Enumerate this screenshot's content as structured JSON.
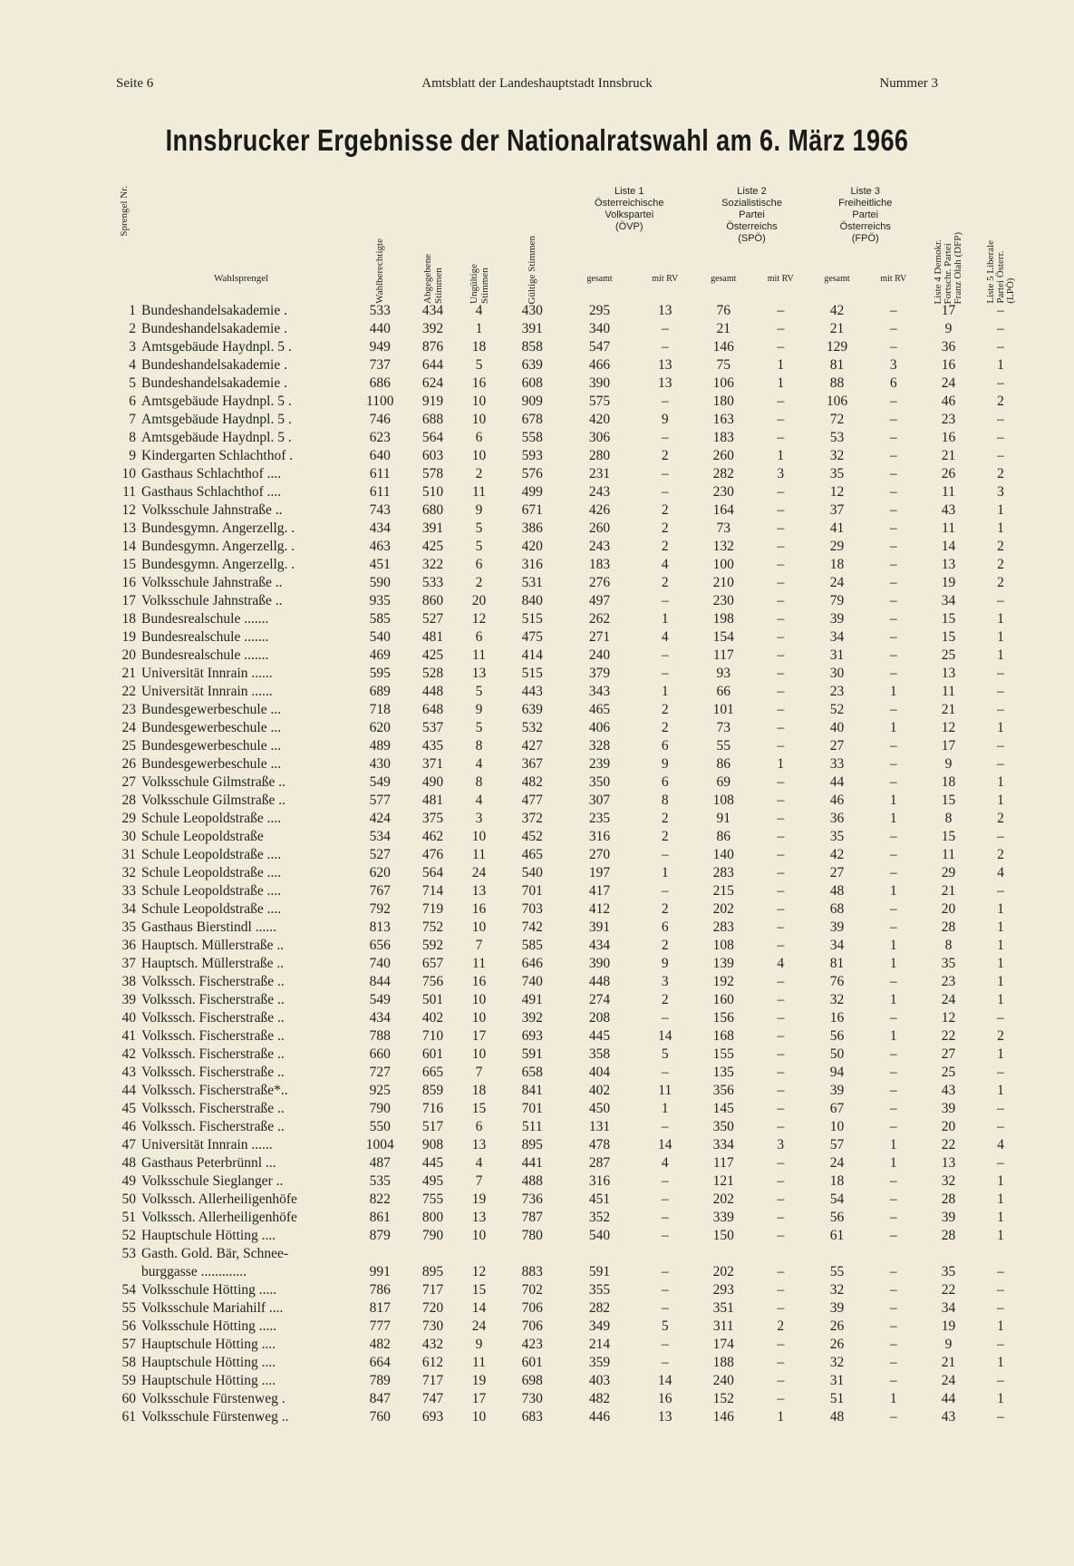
{
  "header": {
    "left": "Seite 6",
    "center": "Amtsblatt der Landeshauptstadt Innsbruck",
    "right": "Nummer 3"
  },
  "title": "Innsbrucker Ergebnisse der Nationalratswahl am 6. März 1966",
  "columns": {
    "nr": "Sprengel Nr.",
    "name": "Wahlsprengel",
    "wahlberechtigte": "Wahlberechtigte",
    "abgegeben": "Abgegebene\nStimmen",
    "ungueltig": "Ungültige\nStimmen",
    "gueltig": "Gültige Stimmen",
    "liste1": "Liste 1\nÖsterreichische\nVolkspartei\n(ÖVP)",
    "liste2": "Liste 2\nSozialistische\nPartei\nÖsterreichs\n(SPÖ)",
    "liste3": "Liste 3\nFreiheitliche\nPartei\nÖsterreichs\n(FPÖ)",
    "gesamt": "gesamt",
    "mit_rv": "mit RV",
    "liste4": "Liste 4  Demokr.\nFortschr. Partei\nFranz Olah (DFP)",
    "liste5": "Liste 5  Liberale\nPartei Österr.\n(LPÖ)"
  },
  "rows": [
    [
      "1",
      "Bundeshandelsakademie .",
      "533",
      "434",
      "4",
      "430",
      "295",
      "13",
      "76",
      "–",
      "42",
      "–",
      "17",
      "–"
    ],
    [
      "2",
      "Bundeshandelsakademie .",
      "440",
      "392",
      "1",
      "391",
      "340",
      "–",
      "21",
      "–",
      "21",
      "–",
      "9",
      "–"
    ],
    [
      "3",
      "Amtsgebäude Haydnpl. 5 .",
      "949",
      "876",
      "18",
      "858",
      "547",
      "–",
      "146",
      "–",
      "129",
      "–",
      "36",
      "–"
    ],
    [
      "4",
      "Bundeshandelsakademie .",
      "737",
      "644",
      "5",
      "639",
      "466",
      "13",
      "75",
      "1",
      "81",
      "3",
      "16",
      "1"
    ],
    [
      "5",
      "Bundeshandelsakademie .",
      "686",
      "624",
      "16",
      "608",
      "390",
      "13",
      "106",
      "1",
      "88",
      "6",
      "24",
      "–"
    ],
    [
      "6",
      "Amtsgebäude Haydnpl. 5 .",
      "1100",
      "919",
      "10",
      "909",
      "575",
      "–",
      "180",
      "–",
      "106",
      "–",
      "46",
      "2"
    ],
    [
      "7",
      "Amtsgebäude Haydnpl. 5 .",
      "746",
      "688",
      "10",
      "678",
      "420",
      "9",
      "163",
      "–",
      "72",
      "–",
      "23",
      "–"
    ],
    [
      "8",
      "Amtsgebäude Haydnpl. 5 .",
      "623",
      "564",
      "6",
      "558",
      "306",
      "–",
      "183",
      "–",
      "53",
      "–",
      "16",
      "–"
    ],
    [
      "9",
      "Kindergarten Schlachthof .",
      "640",
      "603",
      "10",
      "593",
      "280",
      "2",
      "260",
      "1",
      "32",
      "–",
      "21",
      "–"
    ],
    [
      "10",
      "Gasthaus Schlachthof ....",
      "611",
      "578",
      "2",
      "576",
      "231",
      "–",
      "282",
      "3",
      "35",
      "–",
      "26",
      "2"
    ],
    [
      "11",
      "Gasthaus Schlachthof ....",
      "611",
      "510",
      "11",
      "499",
      "243",
      "–",
      "230",
      "–",
      "12",
      "–",
      "11",
      "3"
    ],
    [
      "12",
      "Volksschule Jahnstraße ..",
      "743",
      "680",
      "9",
      "671",
      "426",
      "2",
      "164",
      "–",
      "37",
      "–",
      "43",
      "1"
    ],
    [
      "13",
      "Bundesgymn. Angerzellg. .",
      "434",
      "391",
      "5",
      "386",
      "260",
      "2",
      "73",
      "–",
      "41",
      "–",
      "11",
      "1"
    ],
    [
      "14",
      "Bundesgymn. Angerzellg. .",
      "463",
      "425",
      "5",
      "420",
      "243",
      "2",
      "132",
      "–",
      "29",
      "–",
      "14",
      "2"
    ],
    [
      "15",
      "Bundesgymn. Angerzellg. .",
      "451",
      "322",
      "6",
      "316",
      "183",
      "4",
      "100",
      "–",
      "18",
      "–",
      "13",
      "2"
    ],
    [
      "16",
      "Volksschule Jahnstraße ..",
      "590",
      "533",
      "2",
      "531",
      "276",
      "2",
      "210",
      "–",
      "24",
      "–",
      "19",
      "2"
    ],
    [
      "17",
      "Volksschule Jahnstraße ..",
      "935",
      "860",
      "20",
      "840",
      "497",
      "–",
      "230",
      "–",
      "79",
      "–",
      "34",
      "–"
    ],
    [
      "18",
      "Bundesrealschule .......",
      "585",
      "527",
      "12",
      "515",
      "262",
      "1",
      "198",
      "–",
      "39",
      "–",
      "15",
      "1"
    ],
    [
      "19",
      "Bundesrealschule .......",
      "540",
      "481",
      "6",
      "475",
      "271",
      "4",
      "154",
      "–",
      "34",
      "–",
      "15",
      "1"
    ],
    [
      "20",
      "Bundesrealschule .......",
      "469",
      "425",
      "11",
      "414",
      "240",
      "–",
      "117",
      "–",
      "31",
      "–",
      "25",
      "1"
    ],
    [
      "21",
      "Universität Innrain ......",
      "595",
      "528",
      "13",
      "515",
      "379",
      "–",
      "93",
      "–",
      "30",
      "–",
      "13",
      "–"
    ],
    [
      "22",
      "Universität Innrain ......",
      "689",
      "448",
      "5",
      "443",
      "343",
      "1",
      "66",
      "–",
      "23",
      "1",
      "11",
      "–"
    ],
    [
      "23",
      "Bundesgewerbeschule ...",
      "718",
      "648",
      "9",
      "639",
      "465",
      "2",
      "101",
      "–",
      "52",
      "–",
      "21",
      "–"
    ],
    [
      "24",
      "Bundesgewerbeschule ...",
      "620",
      "537",
      "5",
      "532",
      "406",
      "2",
      "73",
      "–",
      "40",
      "1",
      "12",
      "1"
    ],
    [
      "25",
      "Bundesgewerbeschule ...",
      "489",
      "435",
      "8",
      "427",
      "328",
      "6",
      "55",
      "–",
      "27",
      "–",
      "17",
      "–"
    ],
    [
      "26",
      "Bundesgewerbeschule ...",
      "430",
      "371",
      "4",
      "367",
      "239",
      "9",
      "86",
      "1",
      "33",
      "–",
      "9",
      "–"
    ],
    [
      "27",
      "Volksschule Gilmstraße ..",
      "549",
      "490",
      "8",
      "482",
      "350",
      "6",
      "69",
      "–",
      "44",
      "–",
      "18",
      "1"
    ],
    [
      "28",
      "Volksschule Gilmstraße ..",
      "577",
      "481",
      "4",
      "477",
      "307",
      "8",
      "108",
      "–",
      "46",
      "1",
      "15",
      "1"
    ],
    [
      "29",
      "Schule Leopoldstraße ....",
      "424",
      "375",
      "3",
      "372",
      "235",
      "2",
      "91",
      "–",
      "36",
      "1",
      "8",
      "2"
    ],
    [
      "30",
      "Schule Leopoldstraße",
      "534",
      "462",
      "10",
      "452",
      "316",
      "2",
      "86",
      "–",
      "35",
      "–",
      "15",
      "–"
    ],
    [
      "31",
      "Schule Leopoldstraße ....",
      "527",
      "476",
      "11",
      "465",
      "270",
      "–",
      "140",
      "–",
      "42",
      "–",
      "11",
      "2"
    ],
    [
      "32",
      "Schule Leopoldstraße ....",
      "620",
      "564",
      "24",
      "540",
      "197",
      "1",
      "283",
      "–",
      "27",
      "–",
      "29",
      "4"
    ],
    [
      "33",
      "Schule Leopoldstraße ....",
      "767",
      "714",
      "13",
      "701",
      "417",
      "–",
      "215",
      "–",
      "48",
      "1",
      "21",
      "–"
    ],
    [
      "34",
      "Schule Leopoldstraße ....",
      "792",
      "719",
      "16",
      "703",
      "412",
      "2",
      "202",
      "–",
      "68",
      "–",
      "20",
      "1"
    ],
    [
      "35",
      "Gasthaus Bierstindl ......",
      "813",
      "752",
      "10",
      "742",
      "391",
      "6",
      "283",
      "–",
      "39",
      "–",
      "28",
      "1"
    ],
    [
      "36",
      "Hauptsch. Müllerstraße ..",
      "656",
      "592",
      "7",
      "585",
      "434",
      "2",
      "108",
      "–",
      "34",
      "1",
      "8",
      "1"
    ],
    [
      "37",
      "Hauptsch. Müllerstraße ..",
      "740",
      "657",
      "11",
      "646",
      "390",
      "9",
      "139",
      "4",
      "81",
      "1",
      "35",
      "1"
    ],
    [
      "38",
      "Volkssch. Fischerstraße ..",
      "844",
      "756",
      "16",
      "740",
      "448",
      "3",
      "192",
      "–",
      "76",
      "–",
      "23",
      "1"
    ],
    [
      "39",
      "Volkssch. Fischerstraße ..",
      "549",
      "501",
      "10",
      "491",
      "274",
      "2",
      "160",
      "–",
      "32",
      "1",
      "24",
      "1"
    ],
    [
      "40",
      "Volkssch. Fischerstraße ..",
      "434",
      "402",
      "10",
      "392",
      "208",
      "–",
      "156",
      "–",
      "16",
      "–",
      "12",
      "–"
    ],
    [
      "41",
      "Volkssch. Fischerstraße ..",
      "788",
      "710",
      "17",
      "693",
      "445",
      "14",
      "168",
      "–",
      "56",
      "1",
      "22",
      "2"
    ],
    [
      "42",
      "Volkssch. Fischerstraße ..",
      "660",
      "601",
      "10",
      "591",
      "358",
      "5",
      "155",
      "–",
      "50",
      "–",
      "27",
      "1"
    ],
    [
      "43",
      "Volkssch. Fischerstraße ..",
      "727",
      "665",
      "7",
      "658",
      "404",
      "–",
      "135",
      "–",
      "94",
      "–",
      "25",
      "–"
    ],
    [
      "44",
      "Volkssch. Fischerstraße*..",
      "925",
      "859",
      "18",
      "841",
      "402",
      "11",
      "356",
      "–",
      "39",
      "–",
      "43",
      "1"
    ],
    [
      "45",
      "Volkssch. Fischerstraße ..",
      "790",
      "716",
      "15",
      "701",
      "450",
      "1",
      "145",
      "–",
      "67",
      "–",
      "39",
      "–"
    ],
    [
      "46",
      "Volkssch. Fischerstraße ..",
      "550",
      "517",
      "6",
      "511",
      "131",
      "–",
      "350",
      "–",
      "10",
      "–",
      "20",
      "–"
    ],
    [
      "47",
      "Universität Innrain ......",
      "1004",
      "908",
      "13",
      "895",
      "478",
      "14",
      "334",
      "3",
      "57",
      "1",
      "22",
      "4"
    ],
    [
      "48",
      "Gasthaus Peterbrünnl ...",
      "487",
      "445",
      "4",
      "441",
      "287",
      "4",
      "117",
      "–",
      "24",
      "1",
      "13",
      "–"
    ],
    [
      "49",
      "Volksschule Sieglanger ..",
      "535",
      "495",
      "7",
      "488",
      "316",
      "–",
      "121",
      "–",
      "18",
      "–",
      "32",
      "1"
    ],
    [
      "50",
      "Volkssch. Allerheiligenhöfe",
      "822",
      "755",
      "19",
      "736",
      "451",
      "–",
      "202",
      "–",
      "54",
      "–",
      "28",
      "1"
    ],
    [
      "51",
      "Volkssch. Allerheiligenhöfe",
      "861",
      "800",
      "13",
      "787",
      "352",
      "–",
      "339",
      "–",
      "56",
      "–",
      "39",
      "1"
    ],
    [
      "52",
      "Hauptschule Hötting ....",
      "879",
      "790",
      "10",
      "780",
      "540",
      "–",
      "150",
      "–",
      "61",
      "–",
      "28",
      "1"
    ],
    [
      "53",
      "Gasth. Gold. Bär, Schnee-",
      "",
      "",
      "",
      "",
      "",
      "",
      "",
      "",
      "",
      "",
      "",
      ""
    ],
    [
      "",
      "burggasse .............",
      "991",
      "895",
      "12",
      "883",
      "591",
      "–",
      "202",
      "–",
      "55",
      "–",
      "35",
      "–"
    ],
    [
      "54",
      "Volksschule Hötting .....",
      "786",
      "717",
      "15",
      "702",
      "355",
      "–",
      "293",
      "–",
      "32",
      "–",
      "22",
      "–"
    ],
    [
      "55",
      "Volksschule Mariahilf ....",
      "817",
      "720",
      "14",
      "706",
      "282",
      "–",
      "351",
      "–",
      "39",
      "–",
      "34",
      "–"
    ],
    [
      "56",
      "Volksschule Hötting .....",
      "777",
      "730",
      "24",
      "706",
      "349",
      "5",
      "311",
      "2",
      "26",
      "–",
      "19",
      "1"
    ],
    [
      "57",
      "Hauptschule Hötting ....",
      "482",
      "432",
      "9",
      "423",
      "214",
      "–",
      "174",
      "–",
      "26",
      "–",
      "9",
      "–"
    ],
    [
      "58",
      "Hauptschule Hötting ....",
      "664",
      "612",
      "11",
      "601",
      "359",
      "–",
      "188",
      "–",
      "32",
      "–",
      "21",
      "1"
    ],
    [
      "59",
      "Hauptschule Hötting ....",
      "789",
      "717",
      "19",
      "698",
      "403",
      "14",
      "240",
      "–",
      "31",
      "–",
      "24",
      "–"
    ],
    [
      "60",
      "Volksschule Fürstenweg .",
      "847",
      "747",
      "17",
      "730",
      "482",
      "16",
      "152",
      "–",
      "51",
      "1",
      "44",
      "1"
    ],
    [
      "61",
      "Volksschule Fürstenweg ..",
      "760",
      "693",
      "10",
      "683",
      "446",
      "13",
      "146",
      "1",
      "48",
      "–",
      "43",
      "–"
    ]
  ]
}
